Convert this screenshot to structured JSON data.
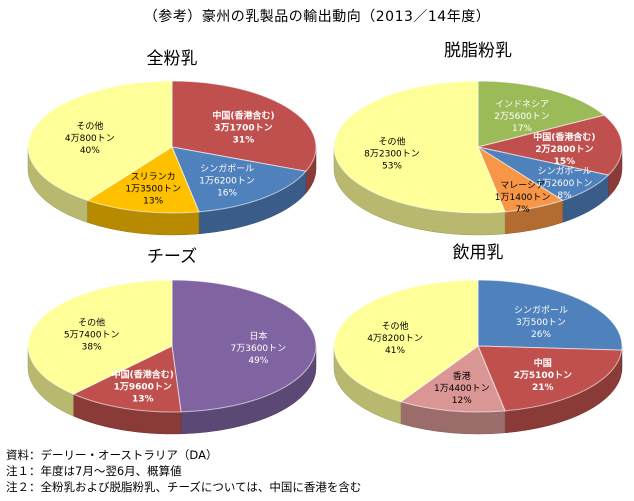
{
  "title": "（参考）豪州の乳製品の輸出動向（2013／14年度）",
  "notes": [
    "資料：デーリー・オーストラリア（DA）",
    "注１：年度は7月～翌6月、概算値",
    "注２：全粉乳および脱脂粉乳、チーズについては、中国に香港を含む"
  ],
  "colors": {
    "yellow": "#FFFF99",
    "red": "#C0504D",
    "blue": "#4F81BD",
    "orange": "#FFC000",
    "green": "#9BBB59",
    "orange2": "#F79646",
    "purple": "#8064A2",
    "pink": "#D99694"
  },
  "chart_data": [
    {
      "type": "pie",
      "title": "全粉乳",
      "slices": [
        {
          "label": "中国(香港含む)",
          "amount": "3万1700トン",
          "percent": 31,
          "color": "red",
          "text_color": "#ffffff",
          "bold": true
        },
        {
          "label": "シンガポール",
          "amount": "1万6200トン",
          "percent": 16,
          "color": "blue",
          "text_color": "#ffffff",
          "bold": false
        },
        {
          "label": "スリランカ",
          "amount": "1万3500トン",
          "percent": 13,
          "color": "orange",
          "text_color": "#000000",
          "bold": false
        },
        {
          "label": "その他",
          "amount": "4万800トン",
          "percent": 40,
          "color": "yellow",
          "text_color": "#000000",
          "bold": false
        }
      ]
    },
    {
      "type": "pie",
      "title": "脱脂粉乳",
      "slices": [
        {
          "label": "インドネシア",
          "amount": "2万5600トン",
          "percent": 17,
          "color": "green",
          "text_color": "#ffffff",
          "bold": false
        },
        {
          "label": "中国(香港含む)",
          "amount": "2万2800トン",
          "percent": 15,
          "color": "red",
          "text_color": "#ffffff",
          "bold": true
        },
        {
          "label": "シンガポール",
          "amount": "1万2600トン",
          "percent": 8,
          "color": "blue",
          "text_color": "#ffffff",
          "bold": false
        },
        {
          "label": "マレーシア",
          "amount": "1万1400トン",
          "percent": 7,
          "color": "orange2",
          "text_color": "#000000",
          "bold": false
        },
        {
          "label": "その他",
          "amount": "8万2300トン",
          "percent": 53,
          "color": "yellow",
          "text_color": "#000000",
          "bold": false
        }
      ]
    },
    {
      "type": "pie",
      "title": "チーズ",
      "slices": [
        {
          "label": "日本",
          "amount": "7万3600トン",
          "percent": 49,
          "color": "purple",
          "text_color": "#ffffff",
          "bold": false
        },
        {
          "label": "中国(香港含む)",
          "amount": "1万9600トン",
          "percent": 13,
          "color": "red",
          "text_color": "#ffffff",
          "bold": true
        },
        {
          "label": "その他",
          "amount": "5万7400トン",
          "percent": 38,
          "color": "yellow",
          "text_color": "#000000",
          "bold": false
        }
      ]
    },
    {
      "type": "pie",
      "title": "飲用乳",
      "slices": [
        {
          "label": "シンガポール",
          "amount": "3万500トン",
          "percent": 26,
          "color": "blue",
          "text_color": "#ffffff",
          "bold": false
        },
        {
          "label": "中国",
          "amount": "2万5100トン",
          "percent": 21,
          "color": "red",
          "text_color": "#ffffff",
          "bold": true
        },
        {
          "label": "香港",
          "amount": "1万4400トン",
          "percent": 12,
          "color": "pink",
          "text_color": "#000000",
          "bold": false
        },
        {
          "label": "その他",
          "amount": "4万8200トン",
          "percent": 41,
          "color": "yellow",
          "text_color": "#000000",
          "bold": false
        }
      ]
    }
  ]
}
